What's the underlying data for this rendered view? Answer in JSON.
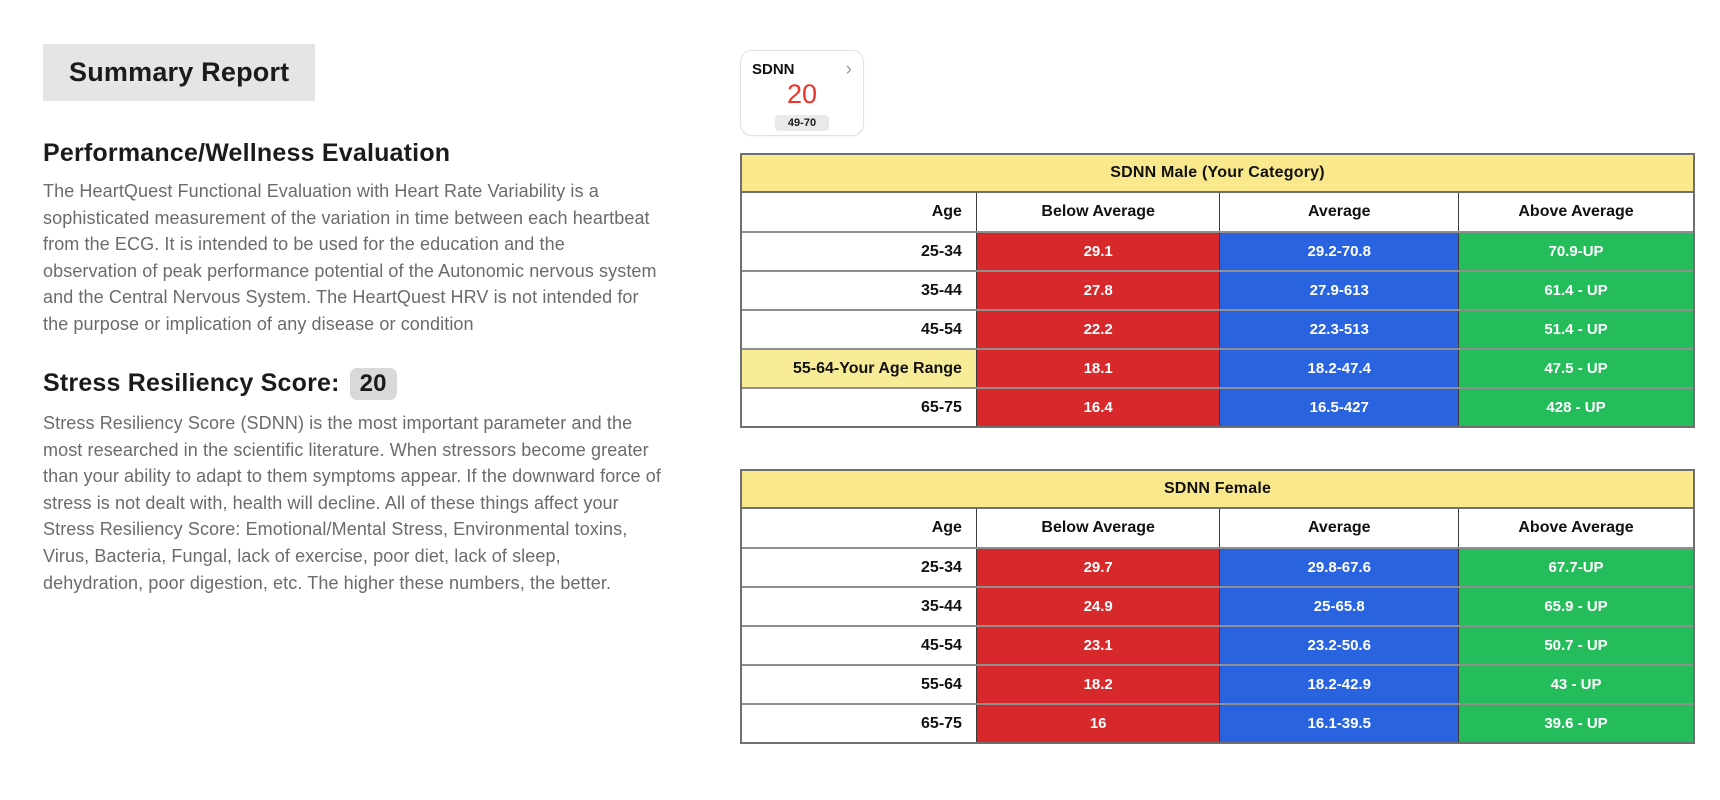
{
  "header": {
    "title": "Summary Report"
  },
  "performance": {
    "heading": "Performance/Wellness Evaluation",
    "body": "The HeartQuest Functional Evaluation with Heart Rate Variability is a sophisticated measurement of the variation in time between each heartbeat from the ECG. It is intended to be used for the education and the observation of peak performance potential of the Autonomic nervous system and the Central Nervous System. The HeartQuest HRV is not intended for the purpose or implication of any disease or condition"
  },
  "stress": {
    "heading": "Stress Resiliency Score:",
    "score": "20",
    "body": "Stress Resiliency Score (SDNN) is the most important parameter and the most researched in the scientific literature. When stressors become greater than your ability to adapt to them symptoms appear. If the downward force of stress is not dealt with, health will decline. All of these things affect your Stress Resiliency Score: Emotional/Mental Stress, Environmental toxins, Virus, Bacteria, Fungal, lack of exercise, poor diet, lack of sleep, dehydration, poor digestion, etc. The higher these numbers, the better."
  },
  "widget": {
    "label": "SDNN",
    "value": "20",
    "range": "49-70",
    "chevron": "›"
  },
  "tables": [
    {
      "title": "SDNN Male (Your Category)",
      "variant": "male",
      "columns": [
        "Age",
        "Below Average",
        "Average",
        "Above Average"
      ],
      "rows": [
        {
          "age": "25-34",
          "below": "29.1",
          "avg": "29.2-70.8",
          "above": "70.9-UP",
          "highlight": false
        },
        {
          "age": "35-44",
          "below": "27.8",
          "avg": "27.9-613",
          "above": "61.4 - UP",
          "highlight": false
        },
        {
          "age": "45-54",
          "below": "22.2",
          "avg": "22.3-513",
          "above": "51.4 - UP",
          "highlight": false
        },
        {
          "age": "55-64-Your Age Range",
          "below": "18.1",
          "avg": "18.2-47.4",
          "above": "47.5 - UP",
          "highlight": true
        },
        {
          "age": "65-75",
          "below": "16.4",
          "avg": "16.5-427",
          "above": "428 - UP",
          "highlight": false
        }
      ]
    },
    {
      "title": "SDNN Female",
      "variant": "female",
      "columns": [
        "Age",
        "Below Average",
        "Average",
        "Above Average"
      ],
      "rows": [
        {
          "age": "25-34",
          "below": "29.7",
          "avg": "29.8-67.6",
          "above": "67.7-UP",
          "highlight": false
        },
        {
          "age": "35-44",
          "below": "24.9",
          "avg": "25-65.8",
          "above": "65.9 - UP",
          "highlight": false
        },
        {
          "age": "45-54",
          "below": "23.1",
          "avg": "23.2-50.6",
          "above": "50.7 - UP",
          "highlight": false
        },
        {
          "age": "55-64",
          "below": "18.2",
          "avg": "18.2-42.9",
          "above": "43 - UP",
          "highlight": false
        },
        {
          "age": "65-75",
          "below": "16",
          "avg": "16.1-39.5",
          "above": "39.6 - UP",
          "highlight": false
        }
      ]
    }
  ],
  "colors": {
    "cell_red": "#d7282c",
    "cell_blue": "#2a63e0",
    "cell_green": "#25bd5b",
    "table_yellow": "#f9e98c",
    "highlight_yellow": "#f9ec99",
    "widget_value_red": "#e8362a"
  }
}
